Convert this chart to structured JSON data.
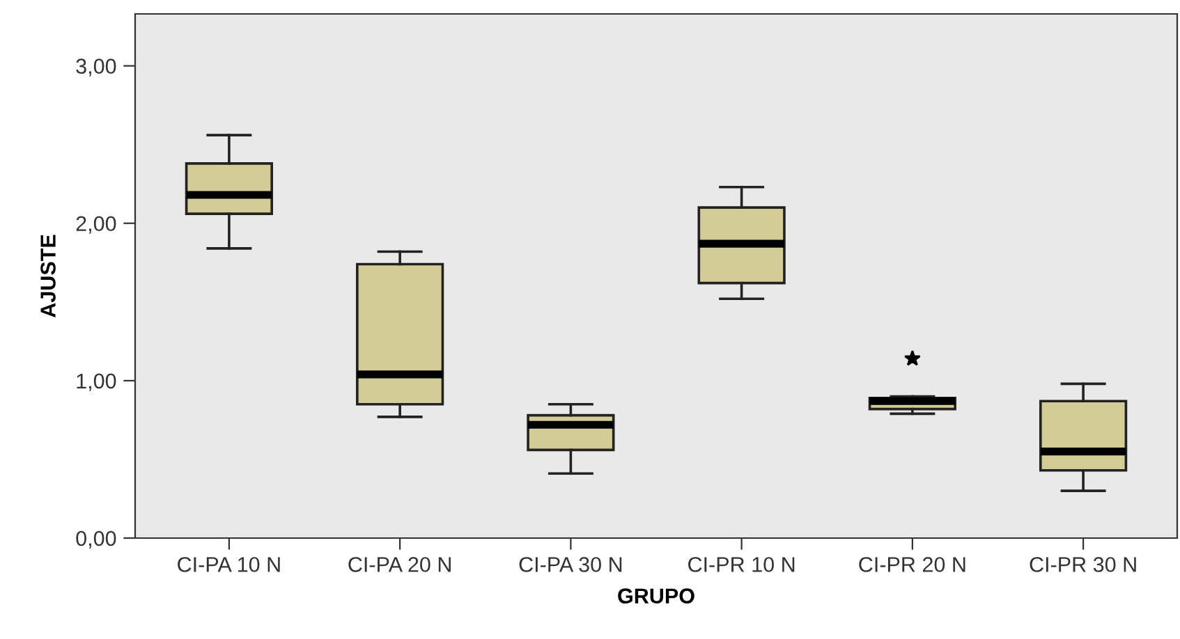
{
  "chart_data": {
    "type": "box",
    "xlabel": "GRUPO",
    "ylabel": "AJUSTE",
    "color": "#d3cc96",
    "marker": "star",
    "grid": false,
    "legend": false,
    "categories": [
      "CI-PA 10 N",
      "CI-PA 20 N",
      "CI-PA 30 N",
      "CI-PR 10 N",
      "CI-PR 20 N",
      "CI-PR 30 N"
    ],
    "boxes": [
      {
        "low": 1.84,
        "q1": 2.06,
        "median": 2.18,
        "q3": 2.38,
        "high": 2.56
      },
      {
        "low": 0.77,
        "q1": 0.85,
        "median": 1.04,
        "q3": 1.74,
        "high": 1.82
      },
      {
        "low": 0.41,
        "q1": 0.56,
        "median": 0.72,
        "q3": 0.78,
        "high": 0.85
      },
      {
        "low": 1.52,
        "q1": 1.62,
        "median": 1.87,
        "q3": 2.1,
        "high": 2.23
      },
      {
        "low": 0.79,
        "q1": 0.82,
        "median": 0.87,
        "q3": 0.89,
        "high": 0.9,
        "outliers": [
          1.14
        ]
      },
      {
        "low": 0.3,
        "q1": 0.43,
        "median": 0.55,
        "q3": 0.87,
        "high": 0.98
      }
    ],
    "ylim": [
      0,
      3.33
    ],
    "yticks": [
      {
        "value": 0,
        "label": "0,00"
      },
      {
        "value": 1,
        "label": "1,00"
      },
      {
        "value": 2,
        "label": "2,00"
      },
      {
        "value": 3,
        "label": "3,00"
      }
    ]
  }
}
